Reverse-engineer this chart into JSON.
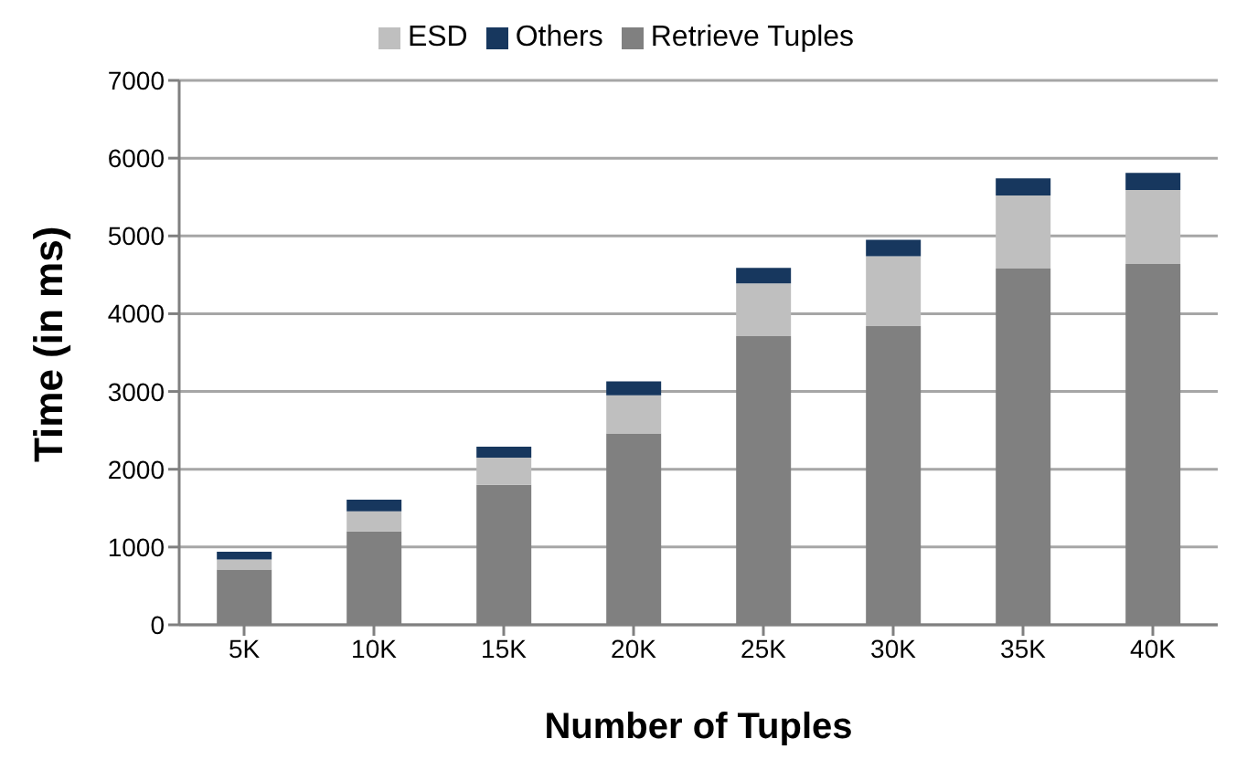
{
  "chart_data": {
    "type": "bar",
    "stacked": true,
    "xlabel": "Number of Tuples",
    "ylabel": "Time (in ms)",
    "categories": [
      "5K",
      "10K",
      "15K",
      "20K",
      "25K",
      "30K",
      "35K",
      "40K"
    ],
    "series": [
      {
        "name": "Retrieve Tuples",
        "color": "#808080",
        "values": [
          710,
          1200,
          1800,
          2460,
          3710,
          3840,
          4580,
          4640
        ]
      },
      {
        "name": "ESD",
        "color": "#bfbfbf",
        "values": [
          130,
          260,
          350,
          490,
          680,
          900,
          940,
          950
        ]
      },
      {
        "name": "Others",
        "color": "#17375e",
        "values": [
          100,
          150,
          140,
          180,
          200,
          210,
          220,
          220
        ]
      }
    ],
    "ylim": [
      0,
      7000
    ],
    "yticks": [
      0,
      1000,
      2000,
      3000,
      4000,
      5000,
      6000,
      7000
    ],
    "grid": "y",
    "legend": "top"
  }
}
